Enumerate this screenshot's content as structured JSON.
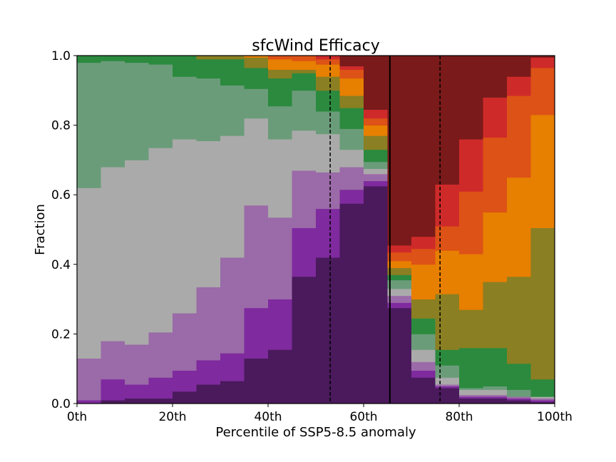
{
  "chart_data": {
    "type": "bar",
    "stacked": true,
    "title": "sfcWind Efficacy",
    "xlabel": "Percentile of SSP5-8.5 anomaly",
    "ylabel": "Fraction",
    "xlim": [
      0,
      100
    ],
    "ylim": [
      0,
      1
    ],
    "x_ticks": [
      0,
      20,
      40,
      60,
      80,
      100
    ],
    "x_tick_labels": [
      "0th",
      "20th",
      "40th",
      "60th",
      "80th",
      "100th"
    ],
    "y_ticks": [
      0,
      0.2,
      0.4,
      0.6,
      0.8,
      1.0
    ],
    "y_tick_labels": [
      "0.0",
      "0.2",
      "0.4",
      "0.6",
      "0.8",
      "1.0"
    ],
    "bin_edges": [
      0,
      5,
      10,
      15,
      20,
      25,
      30,
      35,
      40,
      45,
      50,
      55,
      60,
      65,
      70,
      75,
      80,
      85,
      90,
      95,
      100
    ],
    "series_colors": [
      "#4a1a5c",
      "#7f2a9e",
      "#9b6aa8",
      "#aaaaaa",
      "#6b9c7a",
      "#2b8a3e",
      "#8a7f22",
      "#e77f00",
      "#dd5216",
      "#cf2a2a",
      "#7a1a1a"
    ],
    "cumulative_tops": [
      [
        0.0,
        0.01,
        0.13,
        0.62,
        0.98,
        1.0,
        1.0,
        1.0,
        1.0,
        1.0,
        1.0
      ],
      [
        0.01,
        0.07,
        0.18,
        0.68,
        0.985,
        1.0,
        1.0,
        1.0,
        1.0,
        1.0,
        1.0
      ],
      [
        0.015,
        0.055,
        0.17,
        0.7,
        0.98,
        1.0,
        1.0,
        1.0,
        1.0,
        1.0,
        1.0
      ],
      [
        0.015,
        0.075,
        0.205,
        0.735,
        0.975,
        1.0,
        1.0,
        1.0,
        1.0,
        1.0,
        1.0
      ],
      [
        0.035,
        0.095,
        0.26,
        0.76,
        0.94,
        1.0,
        1.0,
        1.0,
        1.0,
        1.0,
        1.0
      ],
      [
        0.055,
        0.125,
        0.335,
        0.755,
        0.935,
        0.99,
        1.0,
        1.0,
        1.0,
        1.0,
        1.0
      ],
      [
        0.065,
        0.145,
        0.42,
        0.77,
        0.915,
        0.99,
        1.0,
        1.0,
        1.0,
        1.0,
        1.0
      ],
      [
        0.13,
        0.275,
        0.57,
        0.82,
        0.905,
        0.965,
        0.995,
        1.0,
        1.0,
        1.0,
        1.0
      ],
      [
        0.155,
        0.3,
        0.535,
        0.76,
        0.855,
        0.935,
        0.96,
        0.99,
        1.0,
        1.0,
        1.0
      ],
      [
        0.365,
        0.505,
        0.67,
        0.785,
        0.9,
        0.95,
        0.96,
        0.985,
        1.0,
        1.0,
        1.0
      ],
      [
        0.42,
        0.56,
        0.665,
        0.775,
        0.84,
        0.9,
        0.94,
        0.975,
        0.99,
        1.0,
        1.0
      ],
      [
        0.575,
        0.615,
        0.68,
        0.73,
        0.79,
        0.85,
        0.885,
        0.935,
        0.96,
        0.97,
        1.0
      ],
      [
        0.625,
        0.64,
        0.66,
        0.675,
        0.695,
        0.73,
        0.77,
        0.8,
        0.82,
        0.845,
        1.0
      ],
      [
        0.275,
        0.29,
        0.31,
        0.33,
        0.355,
        0.37,
        0.39,
        0.41,
        0.435,
        0.455,
        1.0
      ],
      [
        0.075,
        0.095,
        0.12,
        0.155,
        0.2,
        0.245,
        0.3,
        0.4,
        0.445,
        0.48,
        1.0
      ],
      [
        0.045,
        0.05,
        0.055,
        0.075,
        0.11,
        0.155,
        0.315,
        0.44,
        0.51,
        0.63,
        1.0
      ],
      [
        0.015,
        0.02,
        0.025,
        0.04,
        0.045,
        0.16,
        0.27,
        0.43,
        0.61,
        0.76,
        1.0
      ],
      [
        0.015,
        0.02,
        0.025,
        0.04,
        0.05,
        0.16,
        0.35,
        0.55,
        0.765,
        0.88,
        1.0
      ],
      [
        0.01,
        0.015,
        0.02,
        0.02,
        0.04,
        0.115,
        0.365,
        0.65,
        0.885,
        0.94,
        1.0
      ],
      [
        0.005,
        0.01,
        0.015,
        0.02,
        0.02,
        0.07,
        0.505,
        0.83,
        0.965,
        0.995,
        1.0
      ]
    ],
    "vertical_lines": [
      {
        "x": 53,
        "style": "dashed"
      },
      {
        "x": 65.5,
        "style": "solid"
      },
      {
        "x": 76,
        "style": "dashed"
      }
    ],
    "grid": false,
    "legend": "none"
  }
}
